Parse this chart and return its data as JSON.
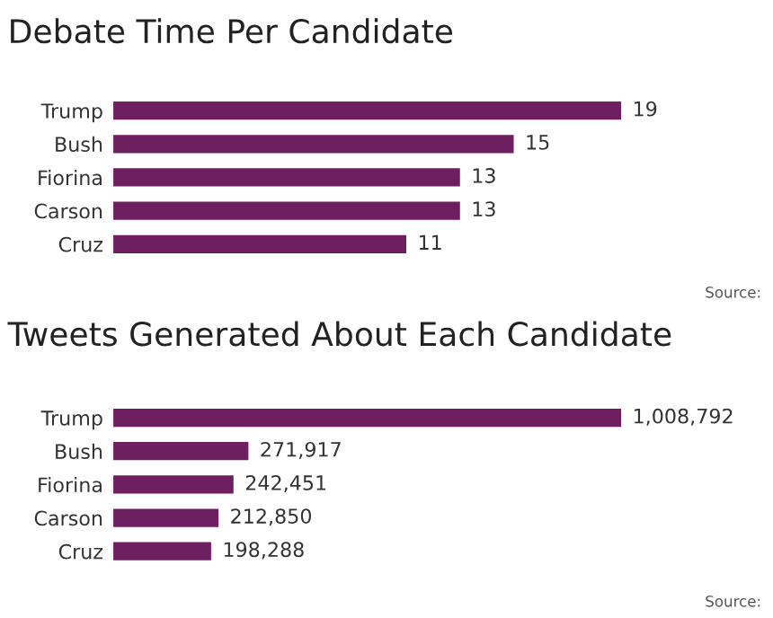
{
  "chart_data": [
    {
      "type": "bar",
      "title": "Debate Time Per Candidate",
      "orientation": "horizontal",
      "categories": [
        "Trump",
        "Bush",
        "Fiorina",
        "Carson",
        "Cruz"
      ],
      "values": [
        19,
        15,
        13,
        13,
        11
      ],
      "color": "#6d1f5f",
      "data_labels": true,
      "tick_labels": "y",
      "grid": false,
      "legend": false,
      "annotations": [
        "Source:"
      ]
    },
    {
      "type": "bar",
      "title": "Tweets Generated About Each Candidate",
      "orientation": "horizontal",
      "categories": [
        "Trump",
        "Bush",
        "Fiorina",
        "Carson",
        "Cruz"
      ],
      "values": [
        1008792,
        271917,
        242451,
        212850,
        198288
      ],
      "value_labels": [
        "1,008,792",
        "271,917",
        "242,451",
        "212,850",
        "198,288"
      ],
      "color": "#6d1f5f",
      "tick_labels": "y",
      "grid": false,
      "legend": false,
      "annotations": [
        "Source:"
      ]
    }
  ]
}
